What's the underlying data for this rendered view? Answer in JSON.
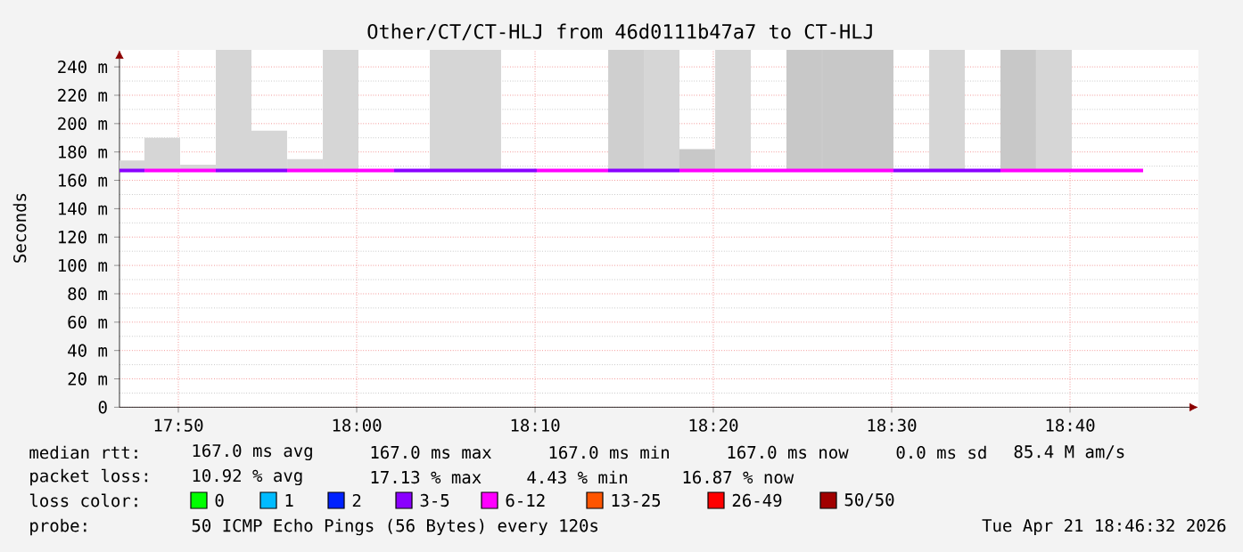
{
  "chart_data": {
    "type": "line",
    "title": "Other/CT/CT-HLJ from 46d0111b47a7 to CT-HLJ",
    "ylabel": "Seconds",
    "legend_title": "loss color:",
    "legend": "bottom",
    "grid": true,
    "line_style": "solid",
    "xlim": [
      17.7783,
      18.7867
    ],
    "xticks": [
      {
        "value": 17.8333,
        "label": "17:50"
      },
      {
        "value": 18.0,
        "label": "18:00"
      },
      {
        "value": 18.1667,
        "label": "18:10"
      },
      {
        "value": 18.3333,
        "label": "18:20"
      },
      {
        "value": 18.5,
        "label": "18:30"
      },
      {
        "value": 18.6667,
        "label": "18:40"
      }
    ],
    "ylim": [
      0,
      252
    ],
    "yticks": [
      0,
      {
        "value": 20,
        "label": "20 m"
      },
      {
        "value": 40,
        "label": "40 m"
      },
      {
        "value": 60,
        "label": "60 m"
      },
      {
        "value": 80,
        "label": "80 m"
      },
      {
        "value": 100,
        "label": "100 m"
      },
      {
        "value": 120,
        "label": "120 m"
      },
      {
        "value": 140,
        "label": "140 m"
      },
      {
        "value": 160,
        "label": "160 m"
      },
      {
        "value": 180,
        "label": "180 m"
      },
      {
        "value": 200,
        "label": "200 m"
      },
      {
        "value": 220,
        "label": "220 m"
      },
      {
        "value": 240,
        "label": "240 m"
      }
    ],
    "x": [
      17.7783,
      17.8017,
      17.835,
      17.8683,
      17.9017,
      17.935,
      17.9683,
      18.0017,
      18.035,
      18.0683,
      18.1017,
      18.135,
      18.1683,
      18.2017,
      18.235,
      18.2683,
      18.3017,
      18.335,
      18.3683,
      18.4017,
      18.435,
      18.4683,
      18.5017,
      18.535,
      18.5683,
      18.6017,
      18.635,
      18.6683,
      18.7017,
      18.735
    ],
    "series": [
      {
        "type": "bar",
        "x": [
          17.785,
          17.8183,
          17.8517,
          17.885,
          17.9183,
          17.9517,
          17.985,
          18.0183,
          18.0517,
          18.085,
          18.1183,
          18.1517,
          18.185,
          18.2183,
          18.2517,
          18.285,
          18.3183,
          18.3517,
          18.385,
          18.4183,
          18.4517,
          18.485,
          18.5183,
          18.5517,
          18.585,
          18.6183,
          18.6517
        ],
        "values": [
          7,
          23,
          4,
          85,
          28,
          8,
          85,
          null,
          null,
          85,
          85,
          null,
          null,
          null,
          85,
          85,
          15,
          85,
          null,
          85,
          85,
          85,
          null,
          85,
          null,
          85,
          85
        ],
        "base": [
          167,
          167,
          167,
          167,
          167,
          167,
          167,
          null,
          null,
          167,
          167,
          null,
          null,
          null,
          167,
          167,
          167,
          167,
          null,
          167,
          167,
          167,
          null,
          167,
          null,
          167,
          167
        ],
        "colors": [
          "#d6d6d6",
          "#d6d6d6",
          "#d6d6d6",
          "#d6d6d6",
          "#d6d6d6",
          "#d6d6d6",
          "#d6d6d6",
          null,
          null,
          "#d6d6d6",
          "#d6d6d6",
          null,
          null,
          null,
          "#cfcfcf",
          "#d6d6d6",
          "#c8c8c8",
          "#d6d6d6",
          null,
          "#c8c8c8",
          "#c8c8c8",
          "#c8c8c8",
          null,
          "#d6d6d6",
          null,
          "#c8c8c8",
          "#d6d6d6"
        ]
      },
      {
        "name": "0",
        "color": "#00ff00",
        "values": [
          null,
          null,
          null,
          null,
          null,
          null,
          null,
          null,
          null,
          null,
          null,
          null,
          null,
          null,
          null,
          null,
          null,
          null,
          null,
          null,
          null,
          null,
          null,
          null,
          null,
          null,
          null,
          null,
          null,
          null
        ]
      },
      {
        "name": "1",
        "color": "#00bbff",
        "values": [
          null,
          null,
          null,
          null,
          null,
          null,
          null,
          null,
          null,
          null,
          null,
          null,
          null,
          null,
          null,
          null,
          null,
          null,
          null,
          null,
          null,
          null,
          null,
          null,
          null,
          null,
          null,
          null,
          null,
          null
        ]
      },
      {
        "name": "2",
        "color": "#0022ff",
        "values": [
          null,
          null,
          null,
          null,
          null,
          null,
          null,
          null,
          null,
          null,
          null,
          null,
          null,
          null,
          null,
          null,
          null,
          null,
          null,
          null,
          null,
          null,
          null,
          null,
          null,
          null,
          null,
          null,
          null,
          null
        ]
      },
      {
        "name": "3-5",
        "color": "#8a00ff",
        "values": [
          167,
          167,
          null,
          167,
          167,
          167,
          null,
          null,
          167,
          167,
          167,
          167,
          167,
          null,
          167,
          167,
          167,
          null,
          null,
          null,
          null,
          null,
          167,
          167,
          167,
          167,
          null,
          null,
          null,
          null
        ]
      },
      {
        "name": "6-12",
        "color": "#ff00ff",
        "values": [
          null,
          167,
          167,
          167,
          null,
          167,
          167,
          167,
          167,
          null,
          null,
          null,
          167,
          167,
          167,
          null,
          167,
          167,
          167,
          167,
          167,
          167,
          167,
          null,
          null,
          167,
          167,
          167,
          167,
          167
        ]
      },
      {
        "name": "13-25",
        "color": "#ff5500",
        "values": [
          null,
          null,
          null,
          null,
          null,
          null,
          null,
          null,
          null,
          null,
          null,
          null,
          null,
          null,
          null,
          null,
          null,
          null,
          null,
          null,
          null,
          null,
          null,
          null,
          null,
          null,
          null,
          null,
          null,
          null
        ]
      },
      {
        "name": "26-49",
        "color": "#ff0000",
        "values": [
          null,
          null,
          null,
          null,
          null,
          null,
          null,
          null,
          null,
          null,
          null,
          null,
          null,
          null,
          null,
          null,
          null,
          null,
          null,
          null,
          null,
          null,
          null,
          null,
          null,
          null,
          null,
          null,
          null,
          null
        ]
      },
      {
        "name": "50/50",
        "color": "#a10000",
        "values": [
          null,
          null,
          null,
          null,
          null,
          null,
          null,
          null,
          null,
          null,
          null,
          null,
          null,
          null,
          null,
          null,
          null,
          null,
          null,
          null,
          null,
          null,
          null,
          null,
          null,
          null,
          null,
          null,
          null,
          null
        ]
      }
    ],
    "annotations": [
      "median rtt:",
      "167.0 ms avg",
      "167.0 ms max",
      "167.0 ms min",
      "167.0 ms now",
      "0.0 ms sd",
      "85.4 M am/s",
      "packet loss:",
      "10.92 % avg",
      "17.13 % max",
      "4.43 % min",
      "16.87 % now",
      "probe:",
      "50 ICMP Echo Pings (56 Bytes) every 120s",
      "Tue Apr 21 18:46:32 2026"
    ]
  }
}
